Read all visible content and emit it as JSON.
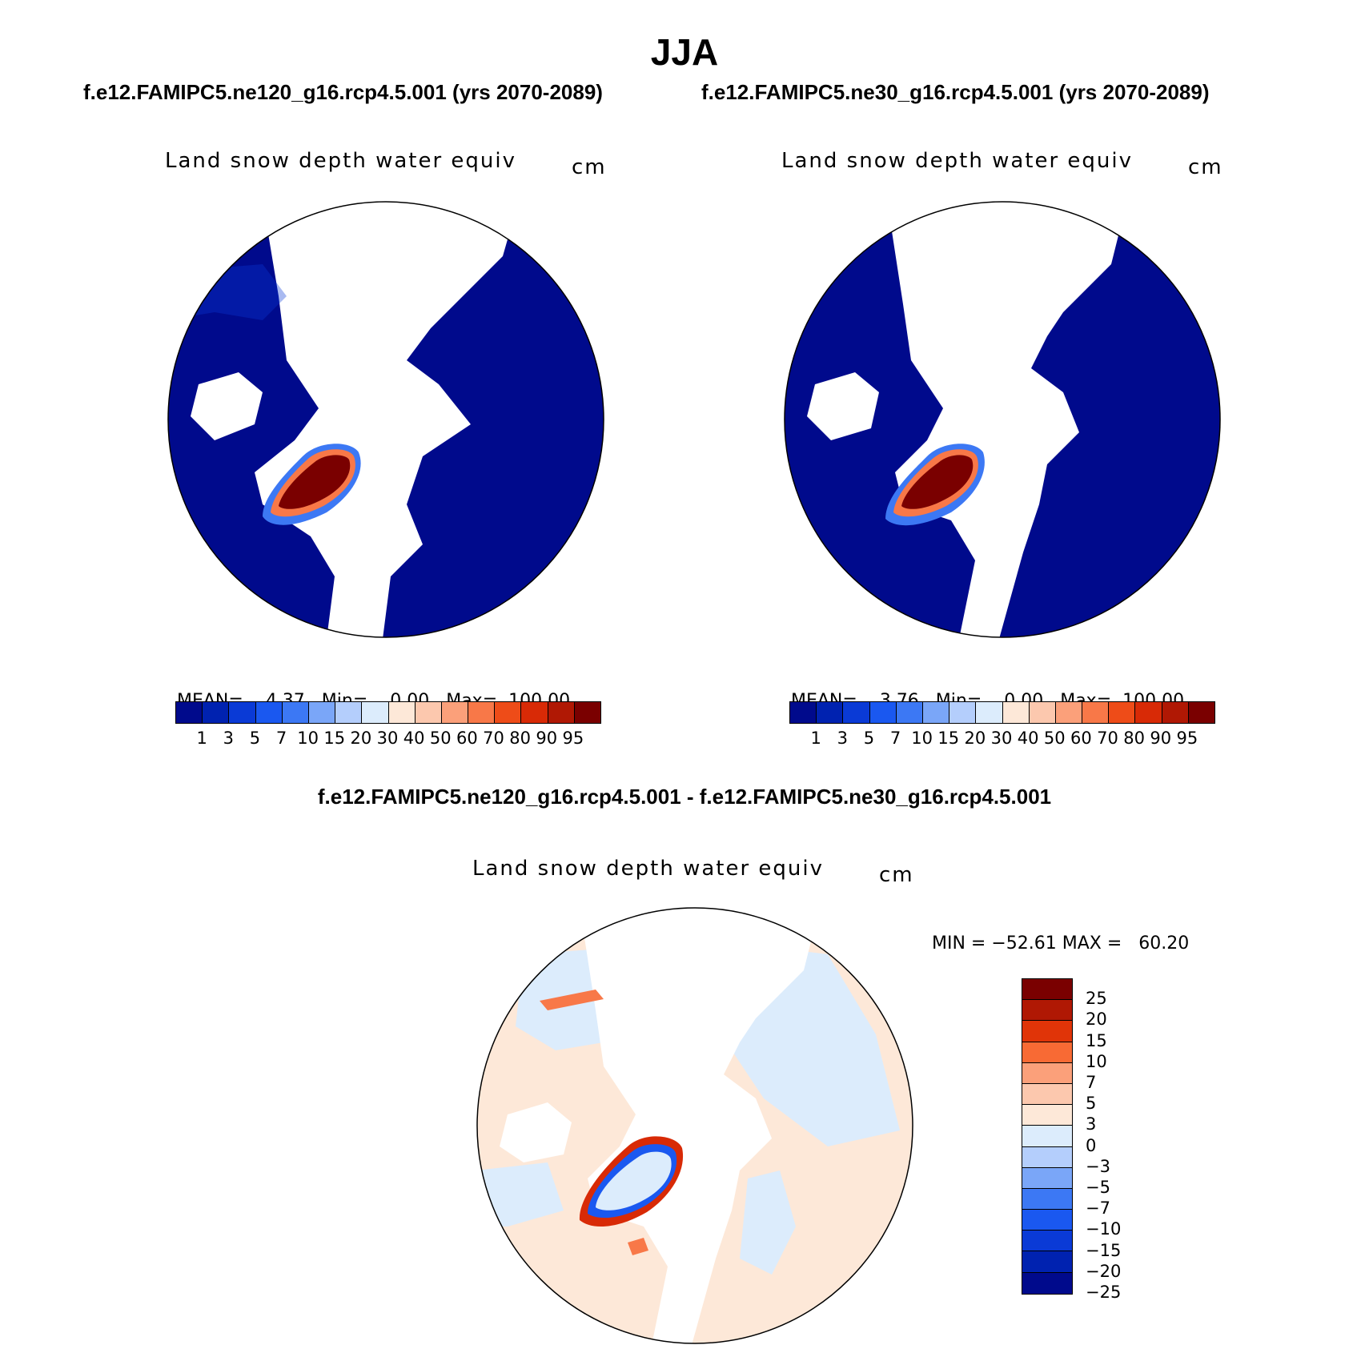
{
  "header": {
    "season": "JJA",
    "case_left": "f.e12.FAMIPC5.ne120_g16.rcp4.5.001 (yrs 2070-2089)",
    "case_right": "f.e12.FAMIPC5.ne30_g16.rcp4.5.001 (yrs 2070-2089)",
    "diff_title": "f.e12.FAMIPC5.ne120_g16.rcp4.5.001 - f.e12.FAMIPC5.ne30_g16.rcp4.5.001"
  },
  "panels": [
    {
      "variable": "Land snow depth water equiv",
      "units": "cm",
      "stats": {
        "mean_label": "MEAN=",
        "mean": "4.37",
        "min_label": "Min=",
        "min": "0.00",
        "max_label": "Max=",
        "max": "100.00"
      }
    },
    {
      "variable": "Land snow depth water equiv",
      "units": "cm",
      "stats": {
        "mean_label": "MEAN=",
        "mean": "3.76",
        "min_label": "Min=",
        "min": "0.00",
        "max_label": "Max=",
        "max": "100.00"
      }
    }
  ],
  "diff_panel": {
    "variable": "Land snow depth water equiv",
    "units": "cm",
    "stats": "MIN = −52.61 MAX =   60.20"
  },
  "colorbar_abs": {
    "colors": [
      "#000a8c",
      "#0022b0",
      "#0a3ad6",
      "#1a58f0",
      "#3c78f4",
      "#7aa6f8",
      "#b4cefc",
      "#dcecfc",
      "#fde8d8",
      "#fcc8ae",
      "#fba07a",
      "#f87848",
      "#ee4c18",
      "#d82a06",
      "#b01804",
      "#7a0000"
    ],
    "ticks": [
      "1",
      "3",
      "5",
      "7",
      "10",
      "15",
      "20",
      "30",
      "40",
      "50",
      "60",
      "70",
      "80",
      "90",
      "95"
    ]
  },
  "colorbar_diff": {
    "colors": [
      "#7a0000",
      "#b01804",
      "#e03408",
      "#f86a34",
      "#fba07a",
      "#fcc8ae",
      "#fde8d8",
      "#dcecfc",
      "#b4cefc",
      "#7aa6f8",
      "#3c78f4",
      "#1a58f0",
      "#0a3ad6",
      "#0022b0",
      "#000a8c"
    ],
    "ticks": [
      "25",
      "20",
      "15",
      "10",
      "7",
      "5",
      "3",
      "0",
      "−3",
      "−5",
      "−7",
      "−10",
      "−15",
      "−20",
      "−25"
    ]
  }
}
